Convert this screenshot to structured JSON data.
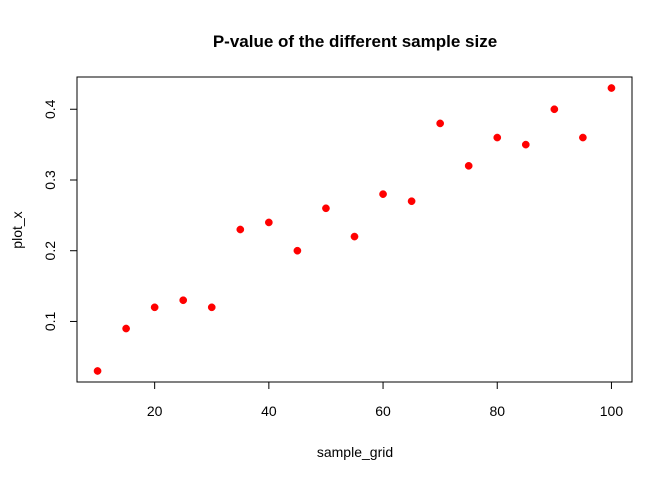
{
  "chart_data": {
    "type": "scatter",
    "title": "P-value of the different sample size",
    "xlabel": "sample_grid",
    "ylabel": "plot_x",
    "x": [
      10,
      15,
      20,
      25,
      30,
      35,
      40,
      45,
      50,
      55,
      60,
      65,
      70,
      75,
      80,
      85,
      90,
      95,
      100
    ],
    "y": [
      0.03,
      0.09,
      0.12,
      0.13,
      0.12,
      0.23,
      0.24,
      0.2,
      0.26,
      0.22,
      0.28,
      0.27,
      0.38,
      0.32,
      0.36,
      0.35,
      0.4,
      0.36,
      0.43
    ],
    "xlim": [
      6.4,
      103.6
    ],
    "ylim": [
      0.0144,
      0.4456
    ],
    "xticks": [
      20,
      40,
      60,
      80,
      100
    ],
    "xtick_labels": [
      "20",
      "40",
      "60",
      "80",
      "100"
    ],
    "yticks": [
      0.1,
      0.2,
      0.3,
      0.4
    ],
    "ytick_labels": [
      "0.1",
      "0.2",
      "0.3",
      "0.4"
    ],
    "point_color": "#ff0000",
    "grid": false,
    "legend": "none"
  }
}
